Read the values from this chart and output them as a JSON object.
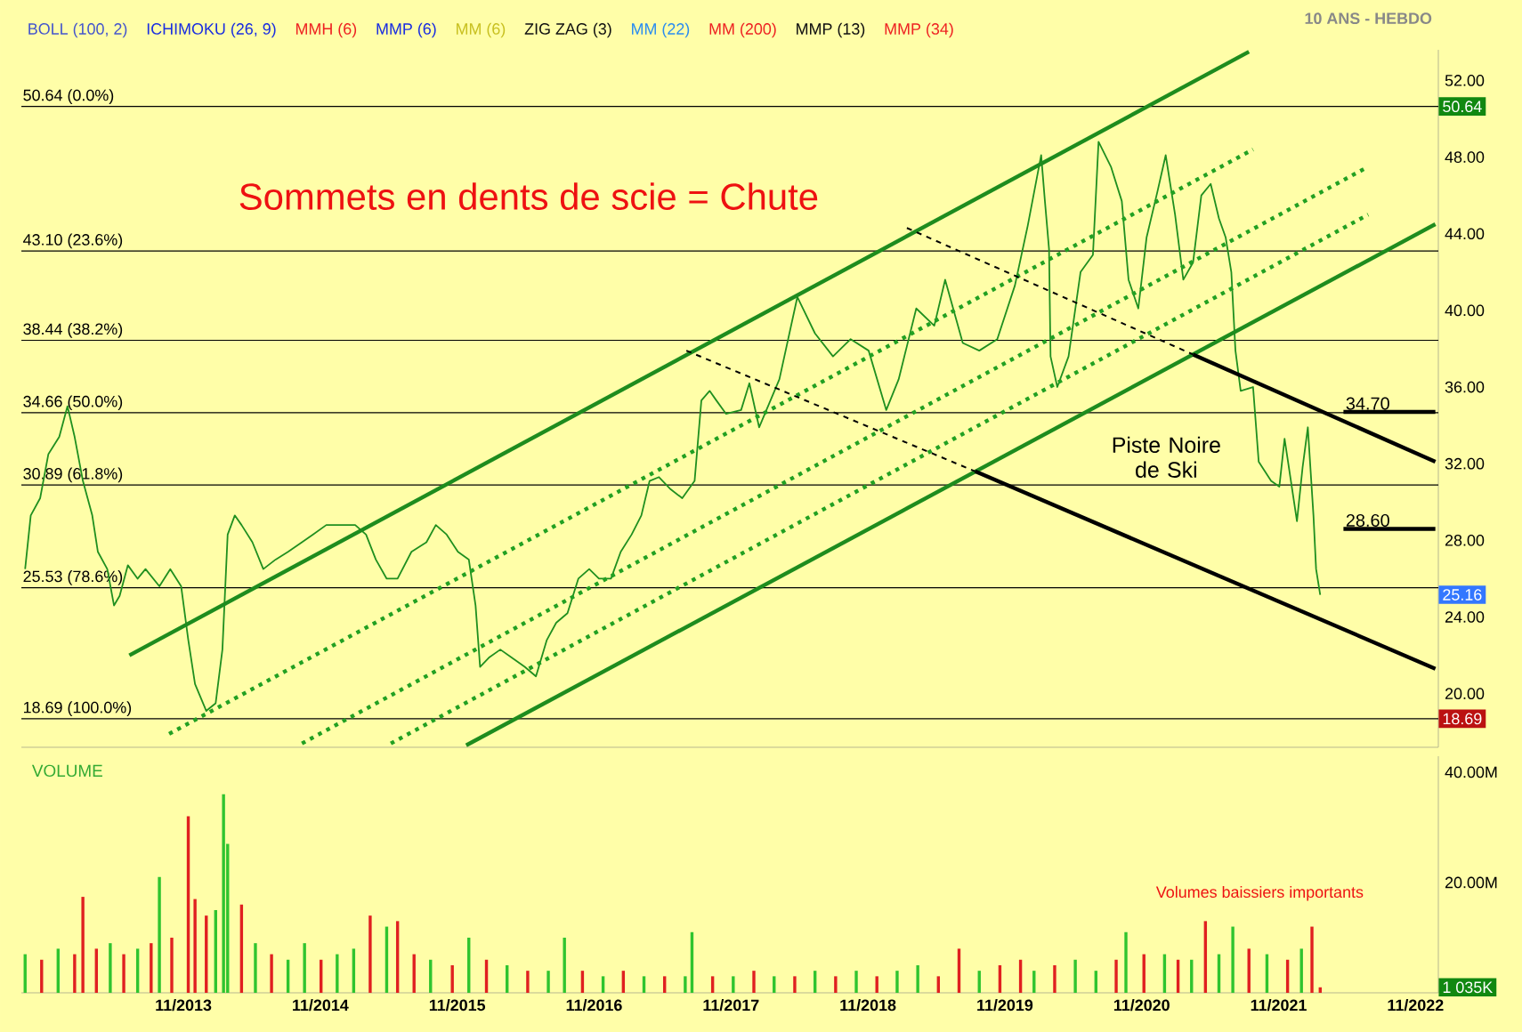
{
  "chart_data": [
    {
      "type": "line",
      "subtitle": "10 ANS - HEBDO",
      "xlim": [
        "2012-08-26",
        "2023-01-01"
      ],
      "ylim": [
        17.2,
        53.6
      ],
      "xticks": [
        {
          "value": "2013-11",
          "label": null
        },
        {
          "value": "2014-11",
          "label": null
        },
        {
          "value": "2015-11",
          "label": null
        },
        {
          "value": "2016-11",
          "label": null
        },
        {
          "value": "2017-11",
          "label": null
        },
        {
          "value": "2018-11",
          "label": null
        },
        {
          "value": "2019-11",
          "label": null
        },
        {
          "value": "2020-11",
          "label": null
        },
        {
          "value": "2021-11",
          "label": null
        },
        {
          "value": "2022-11",
          "label": null
        }
      ],
      "yticks": [
        {
          "value": 20,
          "label": "20.00"
        },
        {
          "value": 24,
          "label": "24.00"
        },
        {
          "value": 28,
          "label": "28.00"
        },
        {
          "value": 32,
          "label": "32.00"
        },
        {
          "value": 36,
          "label": "36.00"
        },
        {
          "value": 40,
          "label": "40.00"
        },
        {
          "value": 44,
          "label": "44.00"
        },
        {
          "value": 48,
          "label": "48.00"
        },
        {
          "value": 52,
          "label": "52.00"
        }
      ],
      "tick_labels": "y",
      "series": [
        {
          "color": "#1f8f1f",
          "x": [
            "2012-09-05",
            "2012-09-20",
            "2012-10-15",
            "2012-11-06",
            "2012-12-05",
            "2012-12-27",
            "2013-01-15",
            "2013-02-06",
            "2013-03-03",
            "2013-03-18",
            "2013-04-12",
            "2013-04-30",
            "2013-05-15",
            "2013-06-06",
            "2013-07-02",
            "2013-07-23",
            "2013-08-29",
            "2013-09-27",
            "2013-10-26",
            "2013-11-14",
            "2013-12-02",
            "2014-01-01",
            "2014-01-26",
            "2014-02-13",
            "2014-02-27",
            "2014-03-18",
            "2014-04-05",
            "2014-05-04",
            "2014-06-02",
            "2014-07-05",
            "2014-08-07",
            "2014-09-13",
            "2014-10-12",
            "2014-11-17",
            "2015-01-07",
            "2015-02-02",
            "2015-03-03",
            "2015-03-29",
            "2015-04-27",
            "2015-05-26",
            "2015-07-02",
            "2015-08-11",
            "2015-09-05",
            "2015-10-04",
            "2015-11-03",
            "2015-12-02",
            "2015-12-20",
            "2016-01-01",
            "2016-01-26",
            "2016-02-24",
            "2016-03-25",
            "2016-04-30",
            "2016-05-30",
            "2016-06-28",
            "2016-07-23",
            "2016-08-22",
            "2016-09-20",
            "2016-10-19",
            "2016-11-14",
            "2016-12-16",
            "2017-01-11",
            "2017-02-09",
            "2017-03-07",
            "2017-03-29",
            "2017-04-23",
            "2017-05-22",
            "2017-06-24",
            "2017-07-27",
            "2017-08-14",
            "2017-09-05",
            "2017-09-23",
            "2017-10-19",
            "2017-11-28",
            "2017-12-20",
            "2018-01-15",
            "2018-03-10",
            "2018-04-27",
            "2018-06-13",
            "2018-07-31",
            "2018-09-16",
            "2018-11-03",
            "2018-12-20",
            "2019-01-22",
            "2019-03-10",
            "2019-04-27",
            "2019-05-26",
            "2019-07-12",
            "2019-08-25",
            "2019-10-12",
            "2019-11-28",
            "2020-01-01",
            "2020-02-06",
            "2020-02-16",
            "2020-02-27",
            "2020-03-03",
            "2020-03-21",
            "2020-04-20",
            "2020-05-22",
            "2020-06-24",
            "2020-07-09",
            "2020-08-11",
            "2020-09-09",
            "2020-09-27",
            "2020-10-23",
            "2020-11-14",
            "2020-12-13",
            "2021-01-04",
            "2021-01-29",
            "2021-02-20",
            "2021-03-18",
            "2021-04-09",
            "2021-05-04",
            "2021-05-26",
            "2021-06-13",
            "2021-06-28",
            "2021-07-09",
            "2021-07-23",
            "2021-08-25",
            "2021-09-09",
            "2021-10-12",
            "2021-11-03",
            "2021-11-17",
            "2021-12-20",
            "2022-01-04",
            "2022-01-18",
            "2022-02-02",
            "2022-02-09",
            "2022-02-20"
          ],
          "values": [
            26.5,
            29.3,
            30.2,
            32.5,
            33.4,
            35.0,
            33.4,
            31.1,
            29.3,
            27.4,
            26.5,
            24.6,
            25.1,
            26.7,
            26.0,
            26.5,
            25.6,
            26.5,
            25.6,
            22.8,
            20.5,
            19.1,
            19.5,
            22.3,
            28.3,
            29.3,
            28.8,
            27.9,
            26.5,
            27.0,
            27.4,
            27.9,
            28.3,
            28.8,
            28.8,
            28.8,
            28.3,
            27.0,
            26.0,
            26.0,
            27.4,
            27.9,
            28.8,
            28.3,
            27.4,
            27.0,
            24.6,
            21.4,
            21.9,
            22.3,
            21.9,
            21.4,
            20.9,
            22.8,
            23.7,
            24.2,
            26.0,
            26.5,
            26.0,
            26.0,
            27.4,
            28.3,
            29.3,
            31.1,
            31.3,
            30.7,
            30.2,
            31.1,
            35.3,
            35.8,
            35.3,
            34.6,
            34.8,
            36.2,
            33.9,
            36.4,
            40.7,
            38.8,
            37.6,
            38.5,
            37.9,
            34.8,
            36.4,
            40.1,
            39.2,
            41.6,
            38.3,
            37.9,
            38.5,
            41.3,
            44.4,
            48.1,
            45.7,
            43.2,
            37.6,
            36.0,
            37.6,
            42.0,
            42.9,
            48.8,
            47.5,
            45.7,
            41.6,
            40.1,
            43.8,
            46.2,
            48.1,
            45.0,
            41.6,
            42.5,
            46.0,
            46.6,
            44.8,
            43.8,
            42.0,
            37.9,
            35.8,
            36.0,
            32.1,
            31.1,
            30.8,
            33.3,
            29.0,
            31.8,
            33.9,
            29.3,
            26.5,
            25.16
          ]
        },
        {
          "color": "#1e8c1e",
          "line_style": "solid",
          "x": [
            "2013-06-10",
            "2021-08-14"
          ],
          "values": [
            22.0,
            53.5
          ]
        },
        {
          "color": "#1e8c1e",
          "line_style": "solid",
          "x": [
            "2015-11-25",
            "2022-12-24"
          ],
          "values": [
            17.3,
            44.5
          ]
        },
        {
          "color": "#22a022",
          "line_style": "dotted",
          "x": [
            "2013-09-24",
            "2021-08-25"
          ],
          "values": [
            17.9,
            48.4
          ]
        },
        {
          "color": "#22a022",
          "line_style": "dotted",
          "x": [
            "2014-09-13",
            "2022-06-28"
          ],
          "values": [
            17.4,
            47.5
          ]
        },
        {
          "color": "#22a022",
          "line_style": "dotted",
          "x": [
            "2015-05-08",
            "2022-06-28"
          ],
          "values": [
            17.4,
            45.0
          ]
        },
        {
          "color": "#000000",
          "line_style": "solid",
          "x": [
            "2021-03-18",
            "2022-12-24"
          ],
          "values": [
            37.7,
            32.1
          ]
        },
        {
          "color": "#000000",
          "line_style": "solid",
          "x": [
            "2019-08-14",
            "2022-12-24"
          ],
          "values": [
            31.6,
            21.3
          ]
        },
        {
          "color": "#000000",
          "line_style": "dashed",
          "x": [
            "2019-02-13",
            "2021-03-18"
          ],
          "values": [
            44.3,
            37.7
          ]
        },
        {
          "color": "#000000",
          "line_style": "dashed",
          "x": [
            "2017-07-05",
            "2019-08-14"
          ],
          "values": [
            37.9,
            31.6
          ]
        },
        {
          "name": "34.70",
          "color": "#000000",
          "line_style": "solid",
          "x": [
            "2022-04-23",
            "2022-12-24"
          ],
          "values": [
            34.7,
            34.7
          ]
        },
        {
          "name": "28.60",
          "color": "#000000",
          "line_style": "solid",
          "x": [
            "2022-04-23",
            "2022-12-24"
          ],
          "values": [
            28.6,
            28.6
          ]
        }
      ],
      "ref_lines": [
        {
          "axis": "y",
          "value": 50.64,
          "label": "50.64  (0.0%)"
        },
        {
          "axis": "y",
          "value": 43.1,
          "label": "43.10  (23.6%)"
        },
        {
          "axis": "y",
          "value": 38.44,
          "label": "38.44  (38.2%)"
        },
        {
          "axis": "y",
          "value": 34.66,
          "label": "34.66  (50.0%)"
        },
        {
          "axis": "y",
          "value": 30.89,
          "label": "30.89  (61.8%)"
        },
        {
          "axis": "y",
          "value": 25.53,
          "label": "25.53  (78.6%)"
        },
        {
          "axis": "y",
          "value": 18.69,
          "label": "18.69  (100.0%)"
        }
      ],
      "annotations": [
        "Sommets en dents de scie = Chute",
        "Piste Noire de Ski",
        "BOLL (100, 2)",
        "ICHIMOKU (26, 9)",
        "MMH (6)",
        "MMP (6)",
        "MM (6)",
        "ZIG ZAG (3)",
        "MM (22)",
        "MM (200)",
        "MMP (13)",
        "MMP (34)",
        {
          "text": "50.64",
          "y": 50.64
        },
        {
          "text": "25.16",
          "y": 25.16
        },
        {
          "text": "18.69",
          "y": 18.69
        }
      ]
    },
    {
      "type": "bar",
      "title": "VOLUME",
      "xlim": [
        "2012-08-26",
        "2023-01-01"
      ],
      "ylim": [
        0,
        42.9
      ],
      "xticks": [
        {
          "value": "2013-11",
          "label": "11/2013"
        },
        {
          "value": "2014-11",
          "label": "11/2014"
        },
        {
          "value": "2015-11",
          "label": "11/2015"
        },
        {
          "value": "2016-11",
          "label": "11/2016"
        },
        {
          "value": "2017-11",
          "label": "11/2017"
        },
        {
          "value": "2018-11",
          "label": "11/2018"
        },
        {
          "value": "2019-11",
          "label": "11/2019"
        },
        {
          "value": "2020-11",
          "label": "11/2020"
        },
        {
          "value": "2021-11",
          "label": "11/2021"
        },
        {
          "value": "2022-11",
          "label": "11/2022"
        }
      ],
      "yticks": [
        {
          "value": 20,
          "label": "20.00M"
        },
        {
          "value": 40,
          "label": "40.00M"
        }
      ],
      "x": [
        "2012-09-05",
        "2012-10-19",
        "2012-12-02",
        "2013-01-15",
        "2013-02-06",
        "2013-03-14",
        "2013-04-20",
        "2013-05-26",
        "2013-07-02",
        "2013-08-07",
        "2013-08-29",
        "2013-10-01",
        "2013-11-14",
        "2013-12-02",
        "2014-01-01",
        "2014-01-26",
        "2014-02-16",
        "2014-02-27",
        "2014-04-05",
        "2014-05-12",
        "2014-06-24",
        "2014-08-07",
        "2014-09-20",
        "2014-11-03",
        "2014-12-16",
        "2015-01-29",
        "2015-03-14",
        "2015-04-27",
        "2015-05-26",
        "2015-07-09",
        "2015-08-22",
        "2015-10-19",
        "2015-12-02",
        "2016-01-18",
        "2016-03-14",
        "2016-05-08",
        "2016-07-02",
        "2016-08-14",
        "2016-10-01",
        "2016-11-25",
        "2017-01-18",
        "2017-03-14",
        "2017-05-08",
        "2017-07-02",
        "2017-07-20",
        "2017-09-13",
        "2017-11-07",
        "2018-01-01",
        "2018-02-24",
        "2018-04-20",
        "2018-06-13",
        "2018-08-07",
        "2018-10-01",
        "2018-11-25",
        "2019-01-18",
        "2019-03-14",
        "2019-05-08",
        "2019-07-02",
        "2019-08-25",
        "2019-10-19",
        "2019-12-13",
        "2020-01-18",
        "2020-03-14",
        "2020-05-08",
        "2020-07-02",
        "2020-08-25",
        "2020-09-20",
        "2020-11-07",
        "2021-01-01",
        "2021-02-06",
        "2021-03-14",
        "2021-04-20",
        "2021-05-26",
        "2021-07-02",
        "2021-08-14",
        "2021-10-01",
        "2021-11-25",
        "2022-01-01",
        "2022-01-29",
        "2022-02-20"
      ],
      "values": [
        7,
        6,
        8,
        7,
        17.4,
        8,
        9,
        7,
        8,
        9,
        21,
        10,
        32,
        17,
        14,
        15,
        36,
        27,
        16,
        9,
        7,
        6,
        9,
        6,
        7,
        8,
        14,
        12,
        13,
        7,
        6,
        5,
        10,
        6,
        5,
        4,
        4,
        10,
        4,
        3,
        4,
        3,
        3,
        3,
        11,
        3,
        3,
        4,
        3,
        3,
        4,
        3,
        4,
        3,
        4,
        5,
        3,
        8,
        4,
        5,
        6,
        4,
        5,
        6,
        4,
        6,
        11,
        7,
        7,
        6,
        6,
        13,
        7,
        12,
        8,
        7,
        6,
        8,
        12,
        1.0
      ],
      "colors": [
        "#2fc42f",
        "#e02020",
        "#2fc42f",
        "#e02020",
        "#e02020",
        "#e02020",
        "#2fc42f",
        "#e02020",
        "#2fc42f",
        "#e02020",
        "#2fc42f",
        "#e02020",
        "#e02020",
        "#e02020",
        "#e02020",
        "#2fc42f",
        "#2fc42f",
        "#2fc42f",
        "#e02020",
        "#2fc42f",
        "#e02020",
        "#2fc42f",
        "#2fc42f",
        "#e02020",
        "#2fc42f",
        "#2fc42f",
        "#e02020",
        "#2fc42f",
        "#e02020",
        "#e02020",
        "#2fc42f",
        "#e02020",
        "#2fc42f",
        "#e02020",
        "#2fc42f",
        "#e02020",
        "#2fc42f",
        "#2fc42f",
        "#e02020",
        "#2fc42f",
        "#e02020",
        "#2fc42f",
        "#e02020",
        "#2fc42f",
        "#2fc42f",
        "#e02020",
        "#2fc42f",
        "#e02020",
        "#2fc42f",
        "#e02020",
        "#2fc42f",
        "#e02020",
        "#2fc42f",
        "#e02020",
        "#2fc42f",
        "#2fc42f",
        "#e02020",
        "#e02020",
        "#2fc42f",
        "#e02020",
        "#e02020",
        "#2fc42f",
        "#e02020",
        "#2fc42f",
        "#2fc42f",
        "#e02020",
        "#2fc42f",
        "#e02020",
        "#2fc42f",
        "#e02020",
        "#2fc42f",
        "#e02020",
        "#2fc42f",
        "#2fc42f",
        "#e02020",
        "#2fc42f",
        "#e02020",
        "#2fc42f",
        "#e02020",
        "#e02020"
      ],
      "annotations": [
        "Volumes baissiers importants",
        {
          "text": "1 035K",
          "y": 1.0
        }
      ]
    }
  ]
}
